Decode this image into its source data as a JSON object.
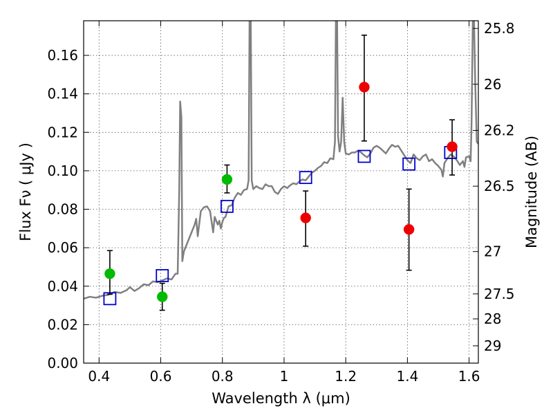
{
  "chart_data": {
    "type": "scatter",
    "xlabel": "Wavelength  λ (μm)",
    "ylabel": "Flux  Fν  ( μJy )",
    "y2label": "Magnitude (AB)",
    "xlim": [
      0.35,
      1.63
    ],
    "ylim": [
      0.0,
      0.178
    ],
    "grid": true,
    "x_ticks": [
      "0.4",
      "0.6",
      "0.8",
      "1",
      "1.2",
      "1.4",
      "1.6"
    ],
    "x_tick_values": [
      0.4,
      0.6,
      0.8,
      1.0,
      1.2,
      1.4,
      1.6
    ],
    "y_ticks": [
      "0.00",
      "0.02",
      "0.04",
      "0.06",
      "0.08",
      "0.10",
      "0.12",
      "0.14",
      "0.16"
    ],
    "y_tick_values": [
      0.0,
      0.02,
      0.04,
      0.06,
      0.08,
      0.1,
      0.12,
      0.14,
      0.16
    ],
    "y2_ticks": [
      {
        "label": "25.8",
        "flux": 0.174
      },
      {
        "label": "26",
        "flux": 0.145
      },
      {
        "label": "26.2",
        "flux": 0.121
      },
      {
        "label": "26.5",
        "flux": 0.092
      },
      {
        "label": "27",
        "flux": 0.058
      },
      {
        "label": "27.5",
        "flux": 0.036
      },
      {
        "label": "28",
        "flux": 0.023
      },
      {
        "label": "29",
        "flux": 0.009
      }
    ],
    "series": [
      {
        "kind": "line",
        "color": "#808080",
        "points": [
          [
            0.35,
            0.0335
          ],
          [
            0.37,
            0.0345
          ],
          [
            0.39,
            0.034
          ],
          [
            0.41,
            0.035
          ],
          [
            0.43,
            0.0355
          ],
          [
            0.45,
            0.037
          ],
          [
            0.47,
            0.0365
          ],
          [
            0.49,
            0.038
          ],
          [
            0.5,
            0.0395
          ],
          [
            0.515,
            0.0375
          ],
          [
            0.53,
            0.039
          ],
          [
            0.545,
            0.041
          ],
          [
            0.56,
            0.0405
          ],
          [
            0.575,
            0.0425
          ],
          [
            0.59,
            0.042
          ],
          [
            0.605,
            0.043
          ],
          [
            0.62,
            0.044
          ],
          [
            0.635,
            0.0435
          ],
          [
            0.648,
            0.0465
          ],
          [
            0.655,
            0.0465
          ],
          [
            0.66,
            0.09
          ],
          [
            0.663,
            0.136
          ],
          [
            0.667,
            0.128
          ],
          [
            0.67,
            0.053
          ],
          [
            0.675,
            0.058
          ],
          [
            0.68,
            0.06
          ],
          [
            0.69,
            0.064
          ],
          [
            0.7,
            0.068
          ],
          [
            0.71,
            0.072
          ],
          [
            0.715,
            0.075
          ],
          [
            0.72,
            0.066
          ],
          [
            0.73,
            0.079
          ],
          [
            0.74,
            0.081
          ],
          [
            0.75,
            0.0815
          ],
          [
            0.76,
            0.079
          ],
          [
            0.77,
            0.068
          ],
          [
            0.775,
            0.076
          ],
          [
            0.785,
            0.072
          ],
          [
            0.79,
            0.074
          ],
          [
            0.795,
            0.07
          ],
          [
            0.8,
            0.0735
          ],
          [
            0.805,
            0.0755
          ],
          [
            0.81,
            0.076
          ],
          [
            0.82,
            0.0815
          ],
          [
            0.83,
            0.082
          ],
          [
            0.84,
            0.086
          ],
          [
            0.85,
            0.0885
          ],
          [
            0.86,
            0.0875
          ],
          [
            0.87,
            0.09
          ],
          [
            0.88,
            0.0905
          ],
          [
            0.885,
            0.095
          ],
          [
            0.888,
            0.178
          ],
          [
            0.892,
            0.178
          ],
          [
            0.895,
            0.095
          ],
          [
            0.9,
            0.0905
          ],
          [
            0.91,
            0.092
          ],
          [
            0.92,
            0.091
          ],
          [
            0.93,
            0.0905
          ],
          [
            0.94,
            0.093
          ],
          [
            0.95,
            0.092
          ],
          [
            0.96,
            0.092
          ],
          [
            0.97,
            0.089
          ],
          [
            0.98,
            0.088
          ],
          [
            0.99,
            0.0905
          ],
          [
            1.0,
            0.092
          ],
          [
            1.01,
            0.091
          ],
          [
            1.02,
            0.0925
          ],
          [
            1.03,
            0.0935
          ],
          [
            1.04,
            0.093
          ],
          [
            1.05,
            0.0945
          ],
          [
            1.06,
            0.0955
          ],
          [
            1.07,
            0.095
          ],
          [
            1.08,
            0.097
          ],
          [
            1.09,
            0.099
          ],
          [
            1.1,
            0.1
          ],
          [
            1.11,
            0.1015
          ],
          [
            1.12,
            0.1025
          ],
          [
            1.13,
            0.1045
          ],
          [
            1.14,
            0.104
          ],
          [
            1.15,
            0.1065
          ],
          [
            1.16,
            0.106
          ],
          [
            1.165,
            0.115
          ],
          [
            1.168,
            0.178
          ],
          [
            1.172,
            0.178
          ],
          [
            1.175,
            0.118
          ],
          [
            1.18,
            0.11
          ],
          [
            1.185,
            0.115
          ],
          [
            1.19,
            0.138
          ],
          [
            1.195,
            0.115
          ],
          [
            1.2,
            0.109
          ],
          [
            1.21,
            0.1085
          ],
          [
            1.22,
            0.1095
          ],
          [
            1.23,
            0.1095
          ],
          [
            1.24,
            0.1105
          ],
          [
            1.25,
            0.1095
          ],
          [
            1.26,
            0.108
          ],
          [
            1.27,
            0.107
          ],
          [
            1.28,
            0.109
          ],
          [
            1.29,
            0.112
          ],
          [
            1.3,
            0.113
          ],
          [
            1.31,
            0.112
          ],
          [
            1.32,
            0.1105
          ],
          [
            1.33,
            0.109
          ],
          [
            1.34,
            0.1115
          ],
          [
            1.35,
            0.1135
          ],
          [
            1.36,
            0.1125
          ],
          [
            1.37,
            0.113
          ],
          [
            1.38,
            0.1105
          ],
          [
            1.39,
            0.108
          ],
          [
            1.4,
            0.1055
          ],
          [
            1.41,
            0.104
          ],
          [
            1.42,
            0.1085
          ],
          [
            1.43,
            0.1065
          ],
          [
            1.44,
            0.1055
          ],
          [
            1.45,
            0.1075
          ],
          [
            1.46,
            0.1085
          ],
          [
            1.47,
            0.105
          ],
          [
            1.48,
            0.106
          ],
          [
            1.49,
            0.104
          ],
          [
            1.5,
            0.1025
          ],
          [
            1.51,
            0.1005
          ],
          [
            1.515,
            0.097
          ],
          [
            1.52,
            0.104
          ],
          [
            1.53,
            0.1065
          ],
          [
            1.54,
            0.1085
          ],
          [
            1.55,
            0.1075
          ],
          [
            1.56,
            0.1055
          ],
          [
            1.57,
            0.103
          ],
          [
            1.58,
            0.105
          ],
          [
            1.585,
            0.102
          ],
          [
            1.59,
            0.107
          ],
          [
            1.6,
            0.1075
          ],
          [
            1.605,
            0.105
          ],
          [
            1.608,
            0.125
          ],
          [
            1.612,
            0.178
          ],
          [
            1.616,
            0.178
          ],
          [
            1.62,
            0.145
          ],
          [
            1.625,
            0.115
          ],
          [
            1.63,
            0.114
          ]
        ]
      },
      {
        "kind": "open-square",
        "color": "#0000cc",
        "points": [
          [
            0.435,
            0.0335
          ],
          [
            0.605,
            0.0455
          ],
          [
            0.815,
            0.0815
          ],
          [
            1.07,
            0.0965
          ],
          [
            1.26,
            0.1075
          ],
          [
            1.405,
            0.1035
          ],
          [
            1.54,
            0.1095
          ]
        ]
      },
      {
        "kind": "circle",
        "color": "#00bb00",
        "points": [
          [
            0.435,
            0.0465
          ],
          [
            0.605,
            0.0345
          ],
          [
            0.815,
            0.0955
          ]
        ],
        "errors": [
          [
            0.0358,
            0.0585
          ],
          [
            0.0275,
            0.0415
          ],
          [
            0.0885,
            0.103
          ]
        ]
      },
      {
        "kind": "circle",
        "color": "#ee0000",
        "points": [
          [
            1.07,
            0.0755
          ],
          [
            1.26,
            0.1435
          ],
          [
            1.405,
            0.0695
          ],
          [
            1.545,
            0.1125
          ]
        ],
        "errors": [
          [
            0.0608,
            0.0895
          ],
          [
            0.1155,
            0.1705
          ],
          [
            0.0483,
            0.0905
          ],
          [
            0.0978,
            0.1265
          ]
        ]
      }
    ]
  }
}
